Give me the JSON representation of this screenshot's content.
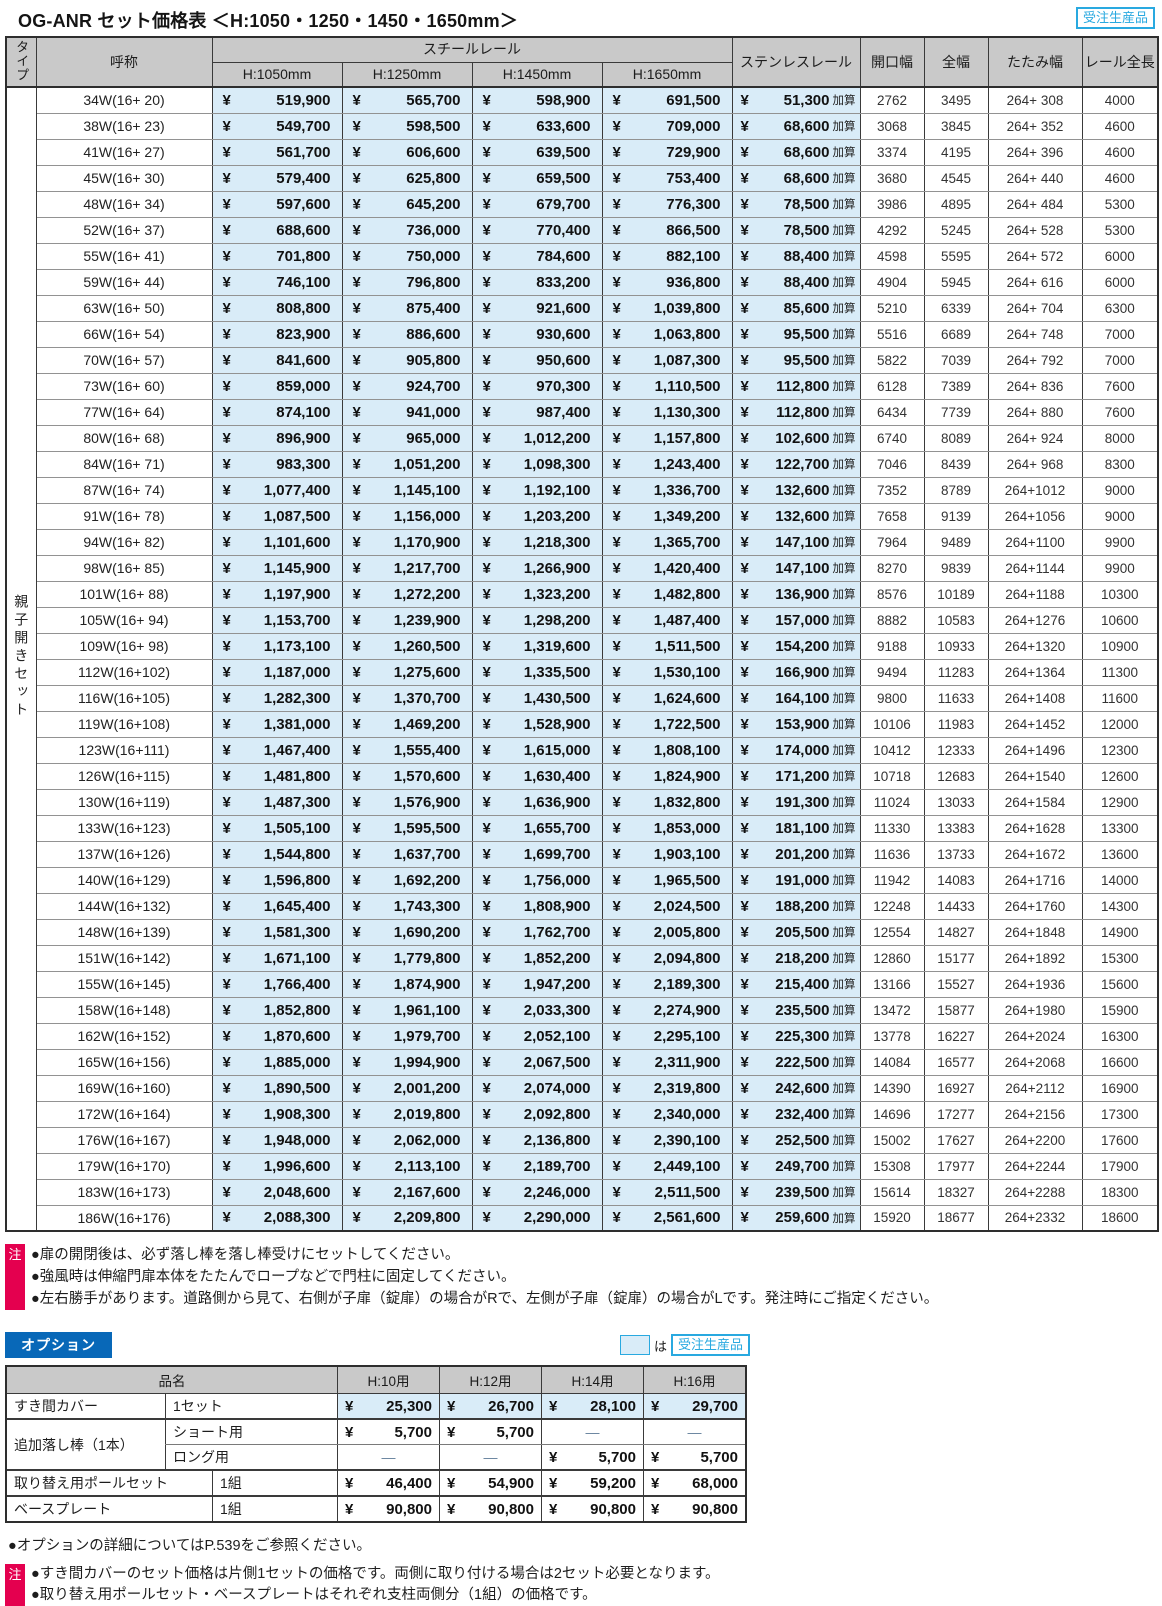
{
  "colors": {
    "light_blue": "#d9ecf8",
    "header_gray": "#c9c9c9",
    "border_dark": "#3a3a3a",
    "border_light": "#929292",
    "cyan": "#29a9e0",
    "note_red": "#e4004f",
    "option_blue": "#0868b8",
    "text_dark": "#1f1f1f"
  },
  "title": "OG-ANR セット価格表 ＜H:1050・1250・1450・1650mm＞",
  "made_to_order_badge": "受注生産品",
  "main_table": {
    "currency": "¥",
    "stainless_suffix": "加算",
    "group_label": "親子開きセット",
    "headers": {
      "type": "タイプ",
      "name": "呼称",
      "steel": "スチールレール",
      "steel_heights": [
        "H:1050mm",
        "H:1250mm",
        "H:1450mm",
        "H:1650mm"
      ],
      "stainless": "ステンレスレール",
      "opening": "開口幅",
      "full_width": "全幅",
      "folding": "たたみ幅",
      "rail_length": "レール全長"
    },
    "rows": [
      [
        "34W(16+ 20)",
        "519,900",
        "565,700",
        "598,900",
        "691,500",
        "51,300",
        "2762",
        "3495",
        "264+ 308",
        "4000"
      ],
      [
        "38W(16+ 23)",
        "549,700",
        "598,500",
        "633,600",
        "709,000",
        "68,600",
        "3068",
        "3845",
        "264+ 352",
        "4600"
      ],
      [
        "41W(16+ 27)",
        "561,700",
        "606,600",
        "639,500",
        "729,900",
        "68,600",
        "3374",
        "4195",
        "264+ 396",
        "4600"
      ],
      [
        "45W(16+ 30)",
        "579,400",
        "625,800",
        "659,500",
        "753,400",
        "68,600",
        "3680",
        "4545",
        "264+ 440",
        "4600"
      ],
      [
        "48W(16+ 34)",
        "597,600",
        "645,200",
        "679,700",
        "776,300",
        "78,500",
        "3986",
        "4895",
        "264+ 484",
        "5300"
      ],
      [
        "52W(16+ 37)",
        "688,600",
        "736,000",
        "770,400",
        "866,500",
        "78,500",
        "4292",
        "5245",
        "264+ 528",
        "5300"
      ],
      [
        "55W(16+ 41)",
        "701,800",
        "750,000",
        "784,600",
        "882,100",
        "88,400",
        "4598",
        "5595",
        "264+ 572",
        "6000"
      ],
      [
        "59W(16+ 44)",
        "746,100",
        "796,800",
        "833,200",
        "936,800",
        "88,400",
        "4904",
        "5945",
        "264+ 616",
        "6000"
      ],
      [
        "63W(16+ 50)",
        "808,800",
        "875,400",
        "921,600",
        "1,039,800",
        "85,600",
        "5210",
        "6339",
        "264+ 704",
        "6300"
      ],
      [
        "66W(16+ 54)",
        "823,900",
        "886,600",
        "930,600",
        "1,063,800",
        "95,500",
        "5516",
        "6689",
        "264+ 748",
        "7000"
      ],
      [
        "70W(16+ 57)",
        "841,600",
        "905,800",
        "950,600",
        "1,087,300",
        "95,500",
        "5822",
        "7039",
        "264+ 792",
        "7000"
      ],
      [
        "73W(16+ 60)",
        "859,000",
        "924,700",
        "970,300",
        "1,110,500",
        "112,800",
        "6128",
        "7389",
        "264+ 836",
        "7600"
      ],
      [
        "77W(16+ 64)",
        "874,100",
        "941,000",
        "987,400",
        "1,130,300",
        "112,800",
        "6434",
        "7739",
        "264+ 880",
        "7600"
      ],
      [
        "80W(16+ 68)",
        "896,900",
        "965,000",
        "1,012,200",
        "1,157,800",
        "102,600",
        "6740",
        "8089",
        "264+ 924",
        "8000"
      ],
      [
        "84W(16+ 71)",
        "983,300",
        "1,051,200",
        "1,098,300",
        "1,243,400",
        "122,700",
        "7046",
        "8439",
        "264+ 968",
        "8300"
      ],
      [
        "87W(16+ 74)",
        "1,077,400",
        "1,145,100",
        "1,192,100",
        "1,336,700",
        "132,600",
        "7352",
        "8789",
        "264+1012",
        "9000"
      ],
      [
        "91W(16+ 78)",
        "1,087,500",
        "1,156,000",
        "1,203,200",
        "1,349,200",
        "132,600",
        "7658",
        "9139",
        "264+1056",
        "9000"
      ],
      [
        "94W(16+ 82)",
        "1,101,600",
        "1,170,900",
        "1,218,300",
        "1,365,700",
        "147,100",
        "7964",
        "9489",
        "264+1100",
        "9900"
      ],
      [
        "98W(16+ 85)",
        "1,145,900",
        "1,217,700",
        "1,266,900",
        "1,420,400",
        "147,100",
        "8270",
        "9839",
        "264+1144",
        "9900"
      ],
      [
        "101W(16+ 88)",
        "1,197,900",
        "1,272,200",
        "1,323,200",
        "1,482,800",
        "136,900",
        "8576",
        "10189",
        "264+1188",
        "10300"
      ],
      [
        "105W(16+ 94)",
        "1,153,700",
        "1,239,900",
        "1,298,200",
        "1,487,400",
        "157,000",
        "8882",
        "10583",
        "264+1276",
        "10600"
      ],
      [
        "109W(16+ 98)",
        "1,173,100",
        "1,260,500",
        "1,319,600",
        "1,511,500",
        "154,200",
        "9188",
        "10933",
        "264+1320",
        "10900"
      ],
      [
        "112W(16+102)",
        "1,187,000",
        "1,275,600",
        "1,335,500",
        "1,530,100",
        "166,900",
        "9494",
        "11283",
        "264+1364",
        "11300"
      ],
      [
        "116W(16+105)",
        "1,282,300",
        "1,370,700",
        "1,430,500",
        "1,624,600",
        "164,100",
        "9800",
        "11633",
        "264+1408",
        "11600"
      ],
      [
        "119W(16+108)",
        "1,381,000",
        "1,469,200",
        "1,528,900",
        "1,722,500",
        "153,900",
        "10106",
        "11983",
        "264+1452",
        "12000"
      ],
      [
        "123W(16+111)",
        "1,467,400",
        "1,555,400",
        "1,615,000",
        "1,808,100",
        "174,000",
        "10412",
        "12333",
        "264+1496",
        "12300"
      ],
      [
        "126W(16+115)",
        "1,481,800",
        "1,570,600",
        "1,630,400",
        "1,824,900",
        "171,200",
        "10718",
        "12683",
        "264+1540",
        "12600"
      ],
      [
        "130W(16+119)",
        "1,487,300",
        "1,576,900",
        "1,636,900",
        "1,832,800",
        "191,300",
        "11024",
        "13033",
        "264+1584",
        "12900"
      ],
      [
        "133W(16+123)",
        "1,505,100",
        "1,595,500",
        "1,655,700",
        "1,853,000",
        "181,100",
        "11330",
        "13383",
        "264+1628",
        "13300"
      ],
      [
        "137W(16+126)",
        "1,544,800",
        "1,637,700",
        "1,699,700",
        "1,903,100",
        "201,200",
        "11636",
        "13733",
        "264+1672",
        "13600"
      ],
      [
        "140W(16+129)",
        "1,596,800",
        "1,692,200",
        "1,756,000",
        "1,965,500",
        "191,000",
        "11942",
        "14083",
        "264+1716",
        "14000"
      ],
      [
        "144W(16+132)",
        "1,645,400",
        "1,743,300",
        "1,808,900",
        "2,024,500",
        "188,200",
        "12248",
        "14433",
        "264+1760",
        "14300"
      ],
      [
        "148W(16+139)",
        "1,581,300",
        "1,690,200",
        "1,762,700",
        "2,005,800",
        "205,500",
        "12554",
        "14827",
        "264+1848",
        "14900"
      ],
      [
        "151W(16+142)",
        "1,671,100",
        "1,779,800",
        "1,852,200",
        "2,094,800",
        "218,200",
        "12860",
        "15177",
        "264+1892",
        "15300"
      ],
      [
        "155W(16+145)",
        "1,766,400",
        "1,874,900",
        "1,947,200",
        "2,189,300",
        "215,400",
        "13166",
        "15527",
        "264+1936",
        "15600"
      ],
      [
        "158W(16+148)",
        "1,852,800",
        "1,961,100",
        "2,033,300",
        "2,274,900",
        "235,500",
        "13472",
        "15877",
        "264+1980",
        "15900"
      ],
      [
        "162W(16+152)",
        "1,870,600",
        "1,979,700",
        "2,052,100",
        "2,295,100",
        "225,300",
        "13778",
        "16227",
        "264+2024",
        "16300"
      ],
      [
        "165W(16+156)",
        "1,885,000",
        "1,994,900",
        "2,067,500",
        "2,311,900",
        "222,500",
        "14084",
        "16577",
        "264+2068",
        "16600"
      ],
      [
        "169W(16+160)",
        "1,890,500",
        "2,001,200",
        "2,074,000",
        "2,319,800",
        "242,600",
        "14390",
        "16927",
        "264+2112",
        "16900"
      ],
      [
        "172W(16+164)",
        "1,908,300",
        "2,019,800",
        "2,092,800",
        "2,340,000",
        "232,400",
        "14696",
        "17277",
        "264+2156",
        "17300"
      ],
      [
        "176W(16+167)",
        "1,948,000",
        "2,062,000",
        "2,136,800",
        "2,390,100",
        "252,500",
        "15002",
        "17627",
        "264+2200",
        "17600"
      ],
      [
        "179W(16+170)",
        "1,996,600",
        "2,113,100",
        "2,189,700",
        "2,449,100",
        "249,700",
        "15308",
        "17977",
        "264+2244",
        "17900"
      ],
      [
        "183W(16+173)",
        "2,048,600",
        "2,167,600",
        "2,246,000",
        "2,511,500",
        "239,500",
        "15614",
        "18327",
        "264+2288",
        "18300"
      ],
      [
        "186W(16+176)",
        "2,088,300",
        "2,209,800",
        "2,290,000",
        "2,561,600",
        "259,600",
        "15920",
        "18677",
        "264+2332",
        "18600"
      ]
    ]
  },
  "notes": {
    "mark": "注",
    "items": [
      "●扉の開閉後は、必ず落し棒を落し棒受けにセットしてください。",
      "●強風時は伸縮門扉本体をたたんでロープなどで門柱に固定してください。",
      "●左右勝手があります。道路側から見て、右側が子扉（錠扉）の場合がRで、左側が子扉（錠扉）の場合がLです。発注時にご指定ください。"
    ]
  },
  "options": {
    "label": "オプション",
    "legend": {
      "particle": "は",
      "badge": "受注生産品"
    },
    "table": {
      "name_header": "品名",
      "col_headers": [
        "H:10用",
        "H:12用",
        "H:14用",
        "H:16用"
      ],
      "currency": "¥",
      "groups": [
        {
          "type": "simple",
          "name": "すき間カバー",
          "unit": "1セット",
          "split": 158,
          "blue": true,
          "prices": [
            "25,300",
            "26,700",
            "28,100",
            "29,700"
          ]
        },
        {
          "type": "double",
          "name": "追加落し棒（1本）",
          "split": 158,
          "subs": [
            {
              "unit": "ショート用",
              "prices": [
                "5,700",
                "5,700",
                "―",
                "―"
              ]
            },
            {
              "unit": "ロング用",
              "prices": [
                "―",
                "―",
                "5,700",
                "5,700"
              ]
            }
          ]
        },
        {
          "type": "simple",
          "name": "取り替え用ポールセット",
          "unit": "1組",
          "split": 205,
          "prices": [
            "46,400",
            "54,900",
            "59,200",
            "68,000"
          ]
        },
        {
          "type": "simple",
          "name": "ベースプレート",
          "unit": "1組",
          "split": 205,
          "prices": [
            "90,800",
            "90,800",
            "90,800",
            "90,800"
          ]
        }
      ]
    },
    "detail_note": "●オプションの詳細についてはP.539をご参照ください。"
  },
  "bottom_notes": {
    "mark": "注",
    "items": [
      "●すき間カバーのセット価格は片側1セットの価格です。両側に取り付ける場合は2セット必要となります。",
      "●取り替え用ポールセット・ベースプレートはそれぞれ支柱両側分（1組）の価格です。"
    ]
  }
}
